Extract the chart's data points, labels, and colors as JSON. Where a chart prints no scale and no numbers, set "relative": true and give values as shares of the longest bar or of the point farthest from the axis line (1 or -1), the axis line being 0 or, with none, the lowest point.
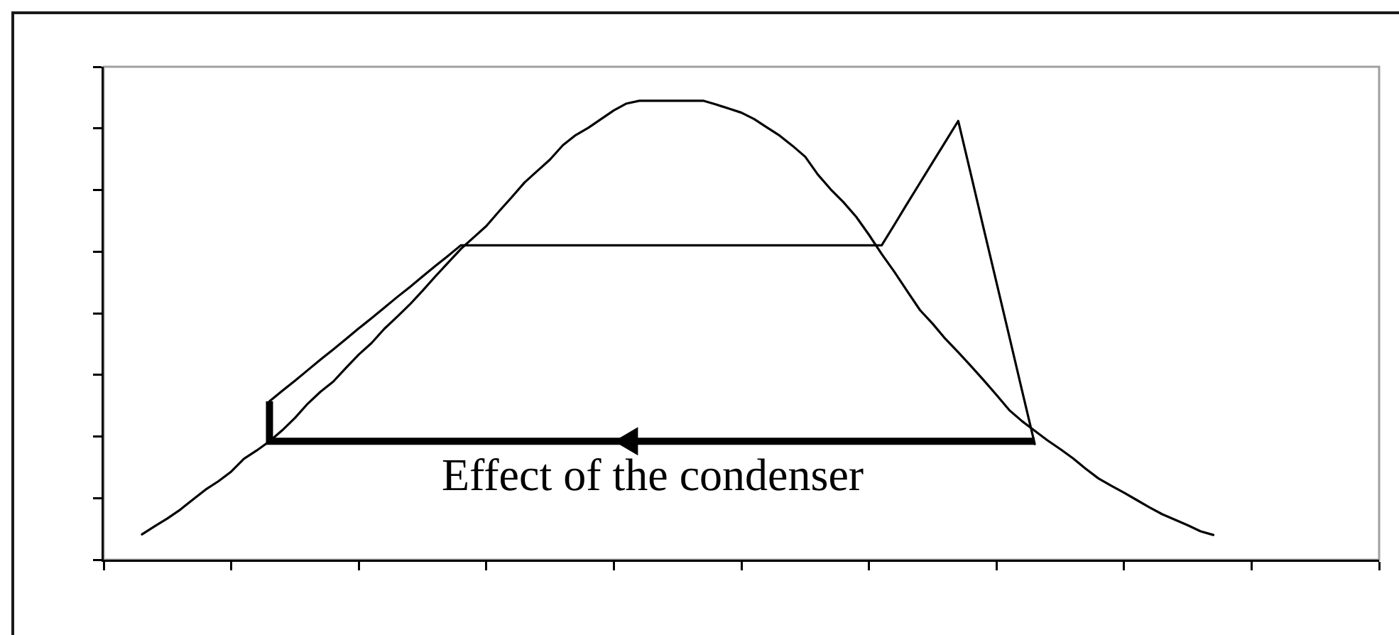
{
  "chart_data": {
    "type": "line",
    "relative": true,
    "marker": "none",
    "line_style": "solid",
    "categories": [
      null,
      null,
      null,
      null,
      null,
      null,
      null,
      null,
      null,
      null,
      null,
      null,
      null,
      null,
      null,
      null,
      null,
      null,
      null,
      null,
      null,
      null,
      null,
      null,
      null,
      null,
      null,
      null,
      null,
      null,
      null,
      null,
      null,
      null,
      null,
      null,
      null,
      null,
      null,
      null,
      null,
      null,
      null,
      null,
      null,
      null,
      null,
      null,
      null,
      null,
      null,
      null,
      null,
      null,
      null,
      null,
      null,
      null,
      null,
      null,
      null,
      null,
      null,
      null,
      null,
      null,
      null,
      null,
      null,
      null,
      null,
      null,
      null,
      null,
      null,
      null,
      null,
      null,
      null,
      null,
      null,
      null,
      null,
      null,
      null,
      null,
      null,
      null,
      null,
      null,
      null,
      null,
      null,
      null,
      null,
      null,
      null,
      null,
      null,
      null,
      null
    ],
    "series": [
      {
        "color": "#000000",
        "values": [
          null,
          null,
          null,
          0.055,
          0.073,
          0.09,
          0.109,
          0.131,
          0.153,
          0.171,
          0.192,
          0.22,
          0.238,
          0.258,
          0.282,
          0.309,
          0.34,
          0.366,
          0.388,
          0.418,
          0.447,
          0.472,
          0.503,
          0.529,
          0.556,
          0.586,
          0.617,
          0.647,
          0.677,
          0.702,
          0.727,
          0.759,
          0.79,
          0.822,
          0.847,
          0.872,
          0.903,
          0.925,
          0.941,
          0.96,
          0.979,
          0.994,
          1,
          1,
          1,
          1,
          1,
          1,
          0.992,
          0.983,
          0.974,
          0.96,
          0.942,
          0.924,
          0.902,
          0.878,
          0.839,
          0.807,
          0.779,
          0.747,
          0.708,
          0.666,
          0.627,
          0.585,
          0.544,
          0.514,
          0.481,
          0.452,
          0.422,
          0.391,
          0.359,
          0.326,
          0.302,
          0.281,
          0.26,
          0.241,
          0.221,
          0.198,
          0.177,
          0.161,
          0.146,
          0.13,
          0.114,
          0.099,
          0.087,
          0.075,
          0.062,
          0.054,
          null,
          null,
          null,
          null,
          null,
          null,
          null,
          null,
          null,
          null,
          null,
          null,
          null
        ]
      },
      {
        "color": "#000000",
        "values": [
          null,
          null,
          null,
          null,
          null,
          null,
          null,
          null,
          null,
          null,
          null,
          null,
          null,
          0.345,
          0.368,
          0.39,
          0.413,
          0.436,
          0.458,
          0.481,
          0.504,
          0.526,
          0.549,
          0.572,
          0.594,
          0.617,
          0.64,
          0.662,
          0.685,
          0.685,
          0.685,
          0.685,
          0.685,
          0.685,
          0.685,
          0.685,
          0.685,
          0.685,
          0.685,
          0.685,
          0.685,
          0.685,
          0.685,
          0.685,
          0.685,
          0.685,
          0.685,
          0.685,
          0.685,
          0.685,
          0.685,
          0.685,
          0.685,
          0.685,
          0.685,
          0.685,
          0.685,
          0.685,
          0.685,
          0.685,
          0.685,
          0.685,
          0.73,
          0.776,
          0.821,
          0.866,
          0.911,
          0.956,
          0.839,
          0.721,
          0.604,
          0.487,
          0.369,
          0.252,
          null,
          null,
          null,
          null,
          null,
          null,
          null,
          null,
          null,
          null,
          null,
          null,
          null,
          null,
          null,
          null,
          null,
          null,
          null,
          null,
          null,
          null,
          null,
          null,
          null,
          null,
          null
        ]
      },
      {
        "type": "step",
        "color": "#000000",
        "values": [
          null,
          null,
          null,
          null,
          null,
          null,
          null,
          null,
          null,
          null,
          null,
          null,
          null,
          0.345,
          0.258,
          0.258,
          0.258,
          0.258,
          0.258,
          0.258,
          0.258,
          0.258,
          0.258,
          0.258,
          0.258,
          0.258,
          0.258,
          0.258,
          0.258,
          0.258,
          0.258,
          0.258,
          0.258,
          0.258,
          0.258,
          0.258,
          0.258,
          0.258,
          0.258,
          0.258,
          0.258,
          0.258,
          0.258,
          0.258,
          0.258,
          0.258,
          0.258,
          0.258,
          0.258,
          0.258,
          0.258,
          0.258,
          0.258,
          0.258,
          0.258,
          0.258,
          0.258,
          0.258,
          0.258,
          0.258,
          0.258,
          0.258,
          0.258,
          0.258,
          0.258,
          0.258,
          0.258,
          0.258,
          0.258,
          0.258,
          0.258,
          0.258,
          0.258,
          0.258,
          null,
          null,
          null,
          null,
          null,
          null,
          null,
          null,
          null,
          null,
          null,
          null,
          null,
          null,
          null,
          null,
          null,
          null,
          null,
          null,
          null,
          null,
          null,
          null,
          null,
          null,
          null
        ]
      }
    ],
    "annotations": [
      "Effect of the condenser"
    ]
  }
}
